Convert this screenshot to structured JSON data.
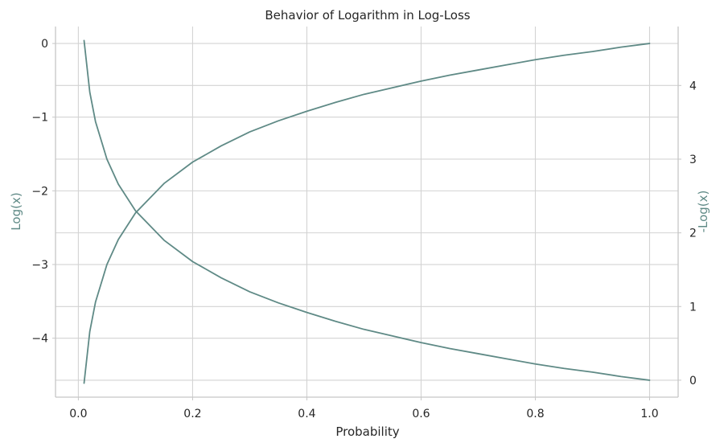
{
  "chart_data": {
    "type": "line",
    "title": "Behavior of Logarithm in Log-Loss",
    "xlabel": "Probability",
    "ylabel_left": "Log(x)",
    "ylabel_right": "-Log(x)",
    "xlim": [
      -0.04,
      1.05
    ],
    "ylim_left": [
      -4.8,
      0.23
    ],
    "ylim_right": [
      -0.23,
      4.8
    ],
    "x_ticks": [
      {
        "value": 0.0,
        "label": "0.0"
      },
      {
        "value": 0.2,
        "label": "0.2"
      },
      {
        "value": 0.4,
        "label": "0.4"
      },
      {
        "value": 0.6,
        "label": "0.6"
      },
      {
        "value": 0.8,
        "label": "0.8"
      },
      {
        "value": 1.0,
        "label": "1.0"
      }
    ],
    "y_left_ticks": [
      {
        "value": 0,
        "label": "0"
      },
      {
        "value": -1,
        "label": "−1"
      },
      {
        "value": -2,
        "label": "−2"
      },
      {
        "value": -3,
        "label": "−3"
      },
      {
        "value": -4,
        "label": "−4"
      }
    ],
    "y_right_ticks": [
      {
        "value": 0,
        "label": "0"
      },
      {
        "value": 1,
        "label": "1"
      },
      {
        "value": 2,
        "label": "2"
      },
      {
        "value": 3,
        "label": "3"
      },
      {
        "value": 4,
        "label": "4"
      }
    ],
    "grid": true,
    "series": [
      {
        "axis": "left",
        "color": "#5f8a86",
        "x": [
          0.01,
          0.02,
          0.03,
          0.05,
          0.07,
          0.1,
          0.15,
          0.2,
          0.25,
          0.3,
          0.35,
          0.4,
          0.45,
          0.5,
          0.55,
          0.6,
          0.65,
          0.7,
          0.75,
          0.8,
          0.85,
          0.9,
          0.95,
          1.0
        ],
        "values": [
          -4.61,
          -3.91,
          -3.51,
          -3.0,
          -2.66,
          -2.3,
          -1.9,
          -1.61,
          -1.39,
          -1.2,
          -1.05,
          -0.92,
          -0.8,
          -0.69,
          -0.6,
          -0.51,
          -0.43,
          -0.36,
          -0.29,
          -0.22,
          -0.16,
          -0.11,
          -0.05,
          0.0
        ]
      },
      {
        "axis": "right",
        "color": "#5f8a86",
        "x": [
          0.01,
          0.02,
          0.03,
          0.05,
          0.07,
          0.1,
          0.15,
          0.2,
          0.25,
          0.3,
          0.35,
          0.4,
          0.45,
          0.5,
          0.55,
          0.6,
          0.65,
          0.7,
          0.75,
          0.8,
          0.85,
          0.9,
          0.95,
          1.0
        ],
        "values": [
          4.61,
          3.91,
          3.51,
          3.0,
          2.66,
          2.3,
          1.9,
          1.61,
          1.39,
          1.2,
          1.05,
          0.92,
          0.8,
          0.69,
          0.6,
          0.51,
          0.43,
          0.36,
          0.29,
          0.22,
          0.16,
          0.11,
          0.05,
          0.0
        ]
      }
    ]
  }
}
